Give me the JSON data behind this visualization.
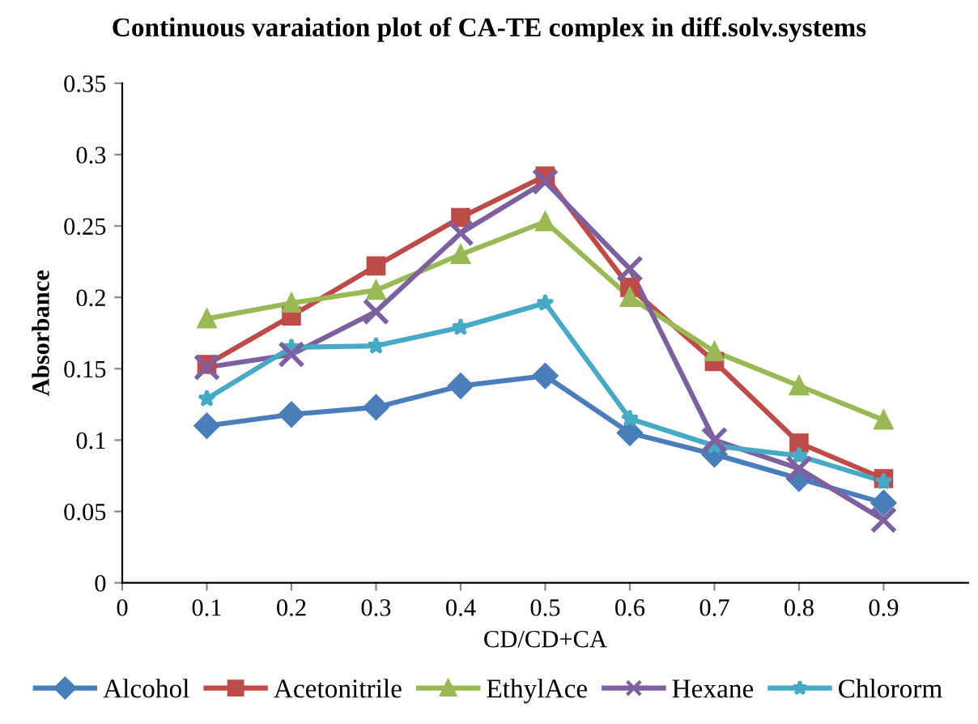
{
  "chart_data": {
    "type": "line",
    "title": "Continuous varaiation plot of CA-TE complex in diff.solv.systems",
    "xlabel": "CD/CD+CA",
    "ylabel": "Absorbance",
    "x": [
      0.1,
      0.2,
      0.3,
      0.4,
      0.5,
      0.6,
      0.7,
      0.8,
      0.9
    ],
    "series": [
      {
        "name": "Alcohol",
        "color": "#4a7ebb",
        "marker": "diamond",
        "values": [
          0.11,
          0.118,
          0.123,
          0.138,
          0.145,
          0.105,
          0.09,
          0.073,
          0.056
        ]
      },
      {
        "name": "Acetonitrile",
        "color": "#be4b48",
        "marker": "square",
        "values": [
          0.153,
          0.187,
          0.222,
          0.256,
          0.285,
          0.207,
          0.155,
          0.098,
          0.073
        ]
      },
      {
        "name": "EthylAce",
        "color": "#98b954",
        "marker": "triangle",
        "values": [
          0.185,
          0.196,
          0.205,
          0.23,
          0.253,
          0.2,
          0.162,
          0.138,
          0.114
        ]
      },
      {
        "name": "Hexane",
        "color": "#7d60a0",
        "marker": "cross",
        "values": [
          0.151,
          0.16,
          0.19,
          0.245,
          0.281,
          0.22,
          0.1,
          0.08,
          0.044
        ]
      },
      {
        "name": "Chlororm",
        "color": "#46aac5",
        "marker": "star",
        "values": [
          0.129,
          0.165,
          0.166,
          0.179,
          0.196,
          0.115,
          0.096,
          0.089,
          0.071
        ]
      }
    ],
    "xlim": [
      0,
      1
    ],
    "xticks": [
      0,
      0.1,
      0.2,
      0.3,
      0.4,
      0.5,
      0.6,
      0.7,
      0.8,
      0.9
    ],
    "ylim": [
      0,
      0.35
    ],
    "yticks": [
      0,
      0.05,
      0.1,
      0.15,
      0.2,
      0.25,
      0.3,
      0.35
    ],
    "grid": false,
    "legend": "bottom",
    "line_style": "solid"
  }
}
